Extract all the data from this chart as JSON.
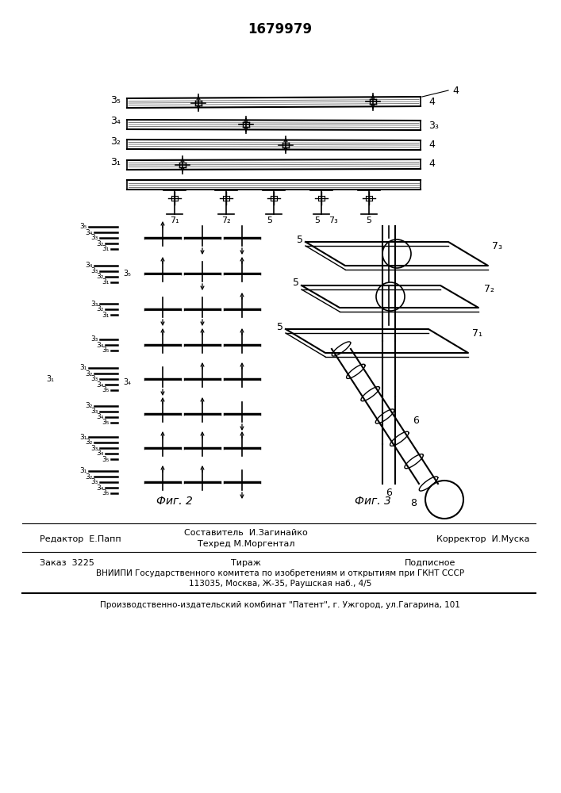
{
  "patent_number": "1679979",
  "fig2_label": "Фиг. 2",
  "fig3_label": "Фиг. 3",
  "footer_line1_left": "Редактор  Е.Папп",
  "footer_line1_center_top": "Составитель  И.Загинайко",
  "footer_line1_center_bot": "Техред М.Моргентал",
  "footer_line1_right": "Корректор  И.Муска",
  "footer_line2_left": "Заказ  3225",
  "footer_line2_center": "Тираж",
  "footer_line2_right": "Подписное",
  "footer_line3": "ВНИИПИ Государственного комитета по изобретениям и открытиям при ГКНТ СССР",
  "footer_line4": "113035, Москва, Ж-35, Раушская наб., 4/5",
  "footer_bottom": "Производственно-издательский комбинат \"Патент\", г. Ужгород, ул.Гагарина, 101",
  "bg_color": "#ffffff",
  "line_color": "#000000"
}
